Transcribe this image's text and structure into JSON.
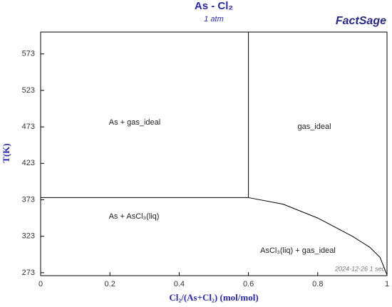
{
  "chart_data": {
    "type": "line",
    "title": "As - Cl₂",
    "subtitle": "1 atm",
    "logo": "FactSage",
    "timestamp": "2024-12-26  1 sec",
    "x_label": "Cl₂/(As+Cl₂) (mol/mol)",
    "y_label": "T(K)",
    "xlim": [
      0,
      1
    ],
    "ylim": [
      269,
      603
    ],
    "xticks": [
      0,
      0.2,
      0.4,
      0.6,
      0.8,
      1
    ],
    "yticks": [
      273,
      323,
      373,
      423,
      473,
      523,
      573
    ],
    "color": "#000000",
    "lines": [
      {
        "x": [
          0,
          0.6
        ],
        "y": [
          376,
          376
        ]
      },
      {
        "x": [
          0.6,
          0.6
        ],
        "y": [
          376,
          603
        ]
      },
      {
        "x": [
          0.6,
          0.7,
          0.8,
          0.9,
          0.95,
          0.98,
          1
        ],
        "y": [
          376,
          367,
          348,
          323,
          308,
          294,
          270
        ]
      }
    ],
    "annotations": [
      "As + gas_ideal",
      "gas_ideal",
      "As + AsCl₃(liq)",
      "AsCl₃(liq) + gas_ideal"
    ]
  }
}
